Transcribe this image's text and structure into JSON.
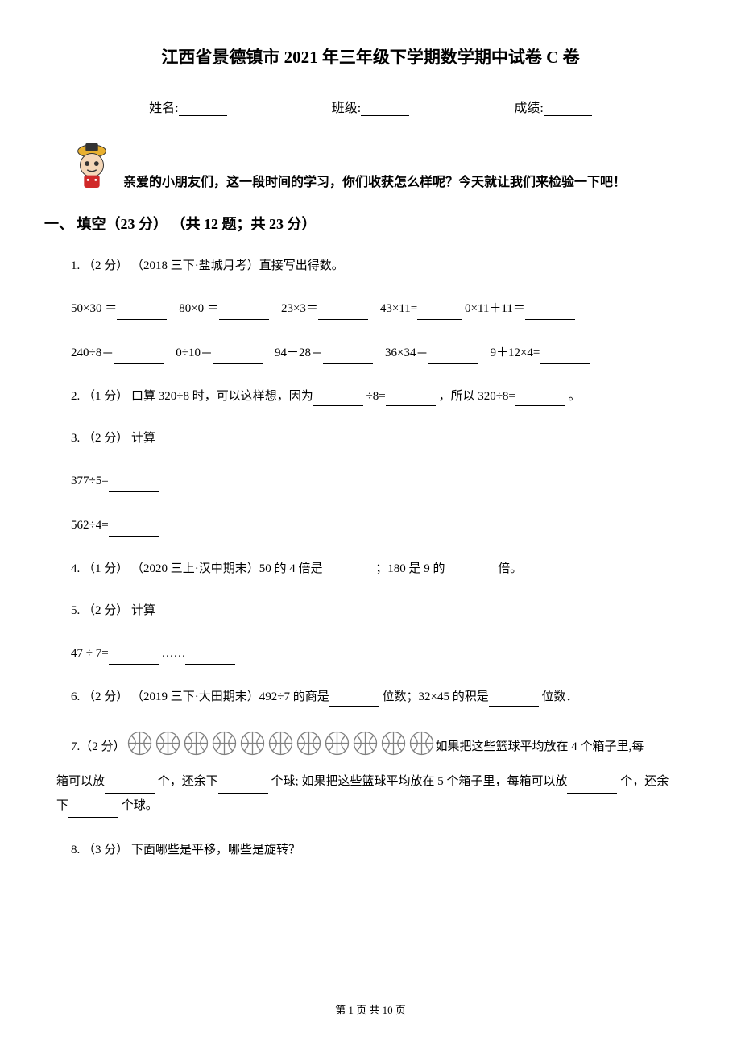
{
  "title": "江西省景德镇市 2021 年三年级下学期数学期中试卷 C 卷",
  "info": {
    "name_label": "姓名:",
    "class_label": "班级:",
    "score_label": "成绩:"
  },
  "mascot_text": "亲爱的小朋友们，这一段时间的学习，你们收获怎么样呢？今天就让我们来检验一下吧！",
  "section1": "一、 填空（23 分） （共 12 题；共 23 分）",
  "q1": {
    "header": "1. （2 分） （2018 三下·盐城月考）直接写出得数。",
    "row1_a": "50×30 ＝",
    "row1_b": "80×0 ＝",
    "row1_c": "23×3＝",
    "row1_d": "43×11=",
    "row1_e": "0×11＋11＝",
    "row2_a": "240÷8＝",
    "row2_b": "0÷10＝",
    "row2_c": "94－28＝",
    "row2_d": "36×34＝",
    "row2_e": "9＋12×4="
  },
  "q2": {
    "text_a": "2. （1 分） 口算 320÷8 时，可以这样想，因为",
    "text_b": "÷8=",
    "text_c": "，所以 320÷8=",
    "text_d": "。"
  },
  "q3": {
    "header": "3. （2 分） 计算",
    "line1": "377÷5=",
    "line2": "562÷4="
  },
  "q4": {
    "text_a": "4. （1 分） （2020 三上·汉中期末）50 的 4 倍是",
    "text_b": "；180 是 9 的",
    "text_c": "倍。"
  },
  "q5": {
    "header": "5. （2 分） 计算",
    "text_a": "47 ÷ 7=",
    "text_b": "……"
  },
  "q6": {
    "text_a": "6. （2 分） （2019 三下·大田期末）492÷7 的商是",
    "text_b": "位数；32×45 的积是",
    "text_c": "位数．"
  },
  "q7": {
    "label": "7.（2 分）",
    "text_a": "如果把这些篮球平均放在 4 个箱子里,每",
    "text_b": "箱可以放",
    "text_c": "个，还余下",
    "text_d": "个球; 如果把这些篮球平均放在 5 个箱子里，每箱可以放",
    "text_e": "个，还余",
    "text_f": "下",
    "text_g": "个球。"
  },
  "q8": "8. （3 分） 下面哪些是平移，哪些是旋转？",
  "footer": "第 1 页 共 10 页",
  "basketball_count": 11,
  "colors": {
    "mascot_hat": "#e8b030",
    "mascot_face": "#f5d7b8",
    "mascot_body": "#d02828",
    "basketball_stroke": "#808080",
    "basketball_fill": "none"
  }
}
